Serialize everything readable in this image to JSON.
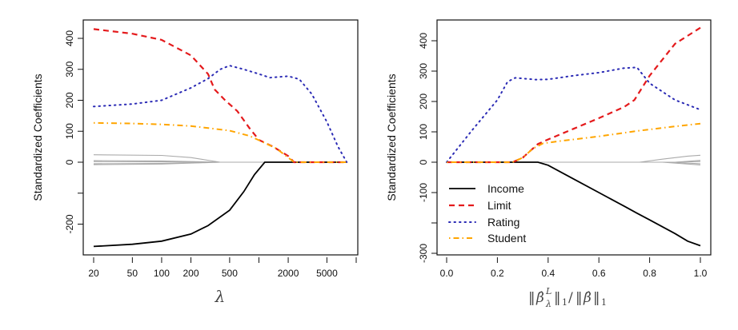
{
  "chart_data": [
    {
      "type": "line",
      "panel": "left",
      "title": "",
      "xlabel": "λ",
      "ylabel": "Standardized Coefficients",
      "xscale": "log",
      "xlim": [
        20,
        10000
      ],
      "ylim": [
        -300,
        450
      ],
      "xticks": [
        20,
        50,
        100,
        200,
        500,
        1000,
        2000,
        5000,
        10000
      ],
      "xtick_labels": [
        "20",
        "50",
        "100",
        "200",
        "500",
        "",
        "2000",
        "5000",
        ""
      ],
      "yticks": [
        -200,
        -100,
        0,
        100,
        200,
        300,
        400
      ],
      "ytick_labels": [
        "-200",
        "",
        "0",
        "100",
        "200",
        "300",
        "400"
      ],
      "grid": false,
      "legend": null,
      "series": [
        {
          "name": "Income",
          "color": "#000000",
          "dash": "solid",
          "points": [
            [
              20,
              -272
            ],
            [
              50,
              -265
            ],
            [
              100,
              -255
            ],
            [
              200,
              -232
            ],
            [
              300,
              -205
            ],
            [
              500,
              -155
            ],
            [
              700,
              -95
            ],
            [
              900,
              -40
            ],
            [
              1150,
              0
            ],
            [
              2200,
              0
            ],
            [
              8000,
              0
            ]
          ]
        },
        {
          "name": "Limit",
          "color": "#e41a1c",
          "dash": "dashed",
          "points": [
            [
              20,
              430
            ],
            [
              50,
              415
            ],
            [
              100,
              395
            ],
            [
              200,
              345
            ],
            [
              300,
              285
            ],
            [
              350,
              235
            ],
            [
              450,
              200
            ],
            [
              600,
              165
            ],
            [
              800,
              110
            ],
            [
              1000,
              72
            ],
            [
              1400,
              50
            ],
            [
              2000,
              20
            ],
            [
              2300,
              0
            ],
            [
              8000,
              0
            ]
          ]
        },
        {
          "name": "Rating",
          "color": "#2b2bb5",
          "dash": "dotted",
          "points": [
            [
              20,
              180
            ],
            [
              50,
              188
            ],
            [
              100,
              200
            ],
            [
              200,
              240
            ],
            [
              300,
              270
            ],
            [
              400,
              300
            ],
            [
              500,
              312
            ],
            [
              700,
              300
            ],
            [
              1000,
              285
            ],
            [
              1300,
              273
            ],
            [
              2000,
              278
            ],
            [
              2600,
              268
            ],
            [
              3500,
              220
            ],
            [
              5000,
              130
            ],
            [
              6500,
              50
            ],
            [
              8000,
              0
            ]
          ]
        },
        {
          "name": "Student",
          "color": "#ffa500",
          "dash": "dashdot",
          "points": [
            [
              20,
              127
            ],
            [
              50,
              125
            ],
            [
              100,
              122
            ],
            [
              200,
              117
            ],
            [
              500,
              102
            ],
            [
              800,
              85
            ],
            [
              1100,
              65
            ],
            [
              1500,
              45
            ],
            [
              2000,
              15
            ],
            [
              2300,
              0
            ],
            [
              8000,
              0
            ]
          ]
        },
        {
          "name": "other-1",
          "color": "#aaaaaa",
          "dash": "solid",
          "points": [
            [
              20,
              24
            ],
            [
              100,
              22
            ],
            [
              200,
              15
            ],
            [
              400,
              0
            ],
            [
              8000,
              0
            ]
          ]
        },
        {
          "name": "other-2",
          "color": "#aaaaaa",
          "dash": "solid",
          "points": [
            [
              20,
              5
            ],
            [
              100,
              4
            ],
            [
              400,
              0
            ],
            [
              8000,
              0
            ]
          ]
        },
        {
          "name": "other-3",
          "color": "#aaaaaa",
          "dash": "solid",
          "points": [
            [
              20,
              2
            ],
            [
              100,
              1
            ],
            [
              400,
              0
            ],
            [
              8000,
              0
            ]
          ]
        },
        {
          "name": "other-4",
          "color": "#aaaaaa",
          "dash": "solid",
          "points": [
            [
              20,
              -5
            ],
            [
              100,
              -4
            ],
            [
              400,
              0
            ],
            [
              8000,
              0
            ]
          ]
        },
        {
          "name": "other-5",
          "color": "#aaaaaa",
          "dash": "solid",
          "points": [
            [
              20,
              -8
            ],
            [
              100,
              -6
            ],
            [
              400,
              0
            ],
            [
              8000,
              0
            ]
          ]
        }
      ]
    },
    {
      "type": "line",
      "panel": "right",
      "title": "",
      "xlabel": "||β̂λL||1/||β̂||1",
      "ylabel": "Standardized Coefficients",
      "xscale": "linear",
      "xlim": [
        -0.04,
        1.04
      ],
      "ylim": [
        -305,
        450
      ],
      "xticks": [
        0.0,
        0.2,
        0.4,
        0.6,
        0.8,
        1.0
      ],
      "xtick_labels": [
        "0.0",
        "0.2",
        "0.4",
        "0.6",
        "0.8",
        "1.0"
      ],
      "yticks": [
        -300,
        -200,
        -100,
        0,
        100,
        200,
        300,
        400
      ],
      "ytick_labels": [
        "-300",
        "",
        "-100",
        "0",
        "100",
        "200",
        "300",
        "400"
      ],
      "grid": false,
      "legend": "bottom-left",
      "series": [
        {
          "name": "Income",
          "color": "#000000",
          "dash": "solid",
          "points": [
            [
              0,
              0
            ],
            [
              0.36,
              0
            ],
            [
              0.4,
              -10
            ],
            [
              0.5,
              -55
            ],
            [
              0.6,
              -100
            ],
            [
              0.7,
              -145
            ],
            [
              0.75,
              -168
            ],
            [
              0.8,
              -190
            ],
            [
              0.9,
              -235
            ],
            [
              0.95,
              -260
            ],
            [
              1.0,
              -275
            ]
          ]
        },
        {
          "name": "Limit",
          "color": "#e41a1c",
          "dash": "dashed",
          "points": [
            [
              0,
              0
            ],
            [
              0.26,
              0
            ],
            [
              0.3,
              15
            ],
            [
              0.36,
              60
            ],
            [
              0.4,
              75
            ],
            [
              0.5,
              110
            ],
            [
              0.6,
              145
            ],
            [
              0.7,
              182
            ],
            [
              0.74,
              205
            ],
            [
              0.8,
              285
            ],
            [
              0.9,
              390
            ],
            [
              1.0,
              443
            ]
          ]
        },
        {
          "name": "Rating",
          "color": "#2b2bb5",
          "dash": "dotted",
          "points": [
            [
              0,
              0
            ],
            [
              0.1,
              105
            ],
            [
              0.2,
              205
            ],
            [
              0.24,
              265
            ],
            [
              0.27,
              278
            ],
            [
              0.35,
              272
            ],
            [
              0.4,
              273
            ],
            [
              0.5,
              285
            ],
            [
              0.6,
              295
            ],
            [
              0.7,
              310
            ],
            [
              0.75,
              312
            ],
            [
              0.8,
              260
            ],
            [
              0.9,
              205
            ],
            [
              1.0,
              173
            ]
          ]
        },
        {
          "name": "Student",
          "color": "#ffa500",
          "dash": "dashdot",
          "points": [
            [
              0,
              0
            ],
            [
              0.26,
              0
            ],
            [
              0.3,
              15
            ],
            [
              0.34,
              45
            ],
            [
              0.38,
              62
            ],
            [
              0.45,
              70
            ],
            [
              0.6,
              85
            ],
            [
              0.75,
              103
            ],
            [
              0.9,
              118
            ],
            [
              1.0,
              127
            ]
          ]
        },
        {
          "name": "other-1",
          "color": "#aaaaaa",
          "dash": "solid",
          "points": [
            [
              0,
              0
            ],
            [
              0.76,
              0
            ],
            [
              0.85,
              10
            ],
            [
              0.95,
              20
            ],
            [
              1.0,
              23
            ]
          ]
        },
        {
          "name": "other-2",
          "color": "#aaaaaa",
          "dash": "solid",
          "points": [
            [
              0,
              0
            ],
            [
              0.9,
              0
            ],
            [
              1.0,
              6
            ]
          ]
        },
        {
          "name": "other-3",
          "color": "#aaaaaa",
          "dash": "solid",
          "points": [
            [
              0,
              0
            ],
            [
              0.9,
              0
            ],
            [
              1.0,
              2
            ]
          ]
        },
        {
          "name": "other-4",
          "color": "#aaaaaa",
          "dash": "solid",
          "points": [
            [
              0,
              0
            ],
            [
              0.88,
              0
            ],
            [
              1.0,
              -5
            ]
          ]
        },
        {
          "name": "other-5",
          "color": "#aaaaaa",
          "dash": "solid",
          "points": [
            [
              0,
              0
            ],
            [
              0.85,
              0
            ],
            [
              1.0,
              -9
            ]
          ]
        }
      ]
    }
  ],
  "legend": {
    "entries": [
      {
        "label": "Income",
        "color": "#000000",
        "dash": "solid"
      },
      {
        "label": "Limit",
        "color": "#e41a1c",
        "dash": "dashed"
      },
      {
        "label": "Rating",
        "color": "#2b2bb5",
        "dash": "dotted"
      },
      {
        "label": "Student",
        "color": "#ffa500",
        "dash": "dashdot"
      }
    ]
  },
  "labels": {
    "left_ylabel": "Standardized Coefficients",
    "right_ylabel": "Standardized Coefficients",
    "left_xlabel": "λ"
  }
}
